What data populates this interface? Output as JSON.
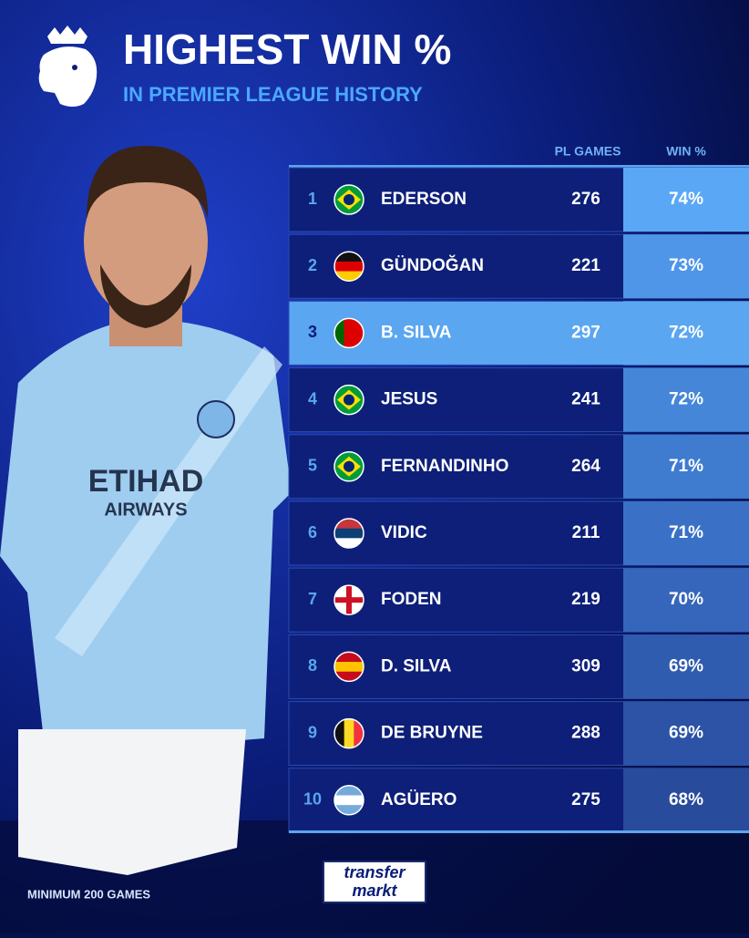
{
  "header": {
    "title": "HIGHEST WIN %",
    "subtitle": "IN PREMIER LEAGUE HISTORY"
  },
  "table": {
    "columns": [
      "PL GAMES",
      "WIN %"
    ],
    "rows": [
      [
        1,
        "EDERSON",
        276,
        "74%"
      ],
      [
        2,
        "GÜNDOĞAN",
        221,
        "73%"
      ],
      [
        3,
        "B. SILVA",
        297,
        "72%"
      ],
      [
        4,
        "JESUS",
        241,
        "72%"
      ],
      [
        5,
        "FERNANDINHO",
        264,
        "71%"
      ],
      [
        6,
        "VIDIC",
        211,
        "71%"
      ],
      [
        7,
        "FODEN",
        219,
        "70%"
      ],
      [
        8,
        "D. SILVA",
        309,
        "69%"
      ],
      [
        9,
        "DE BRUYNE",
        288,
        "69%"
      ],
      [
        10,
        "AGÜERO",
        275,
        "68%"
      ]
    ]
  },
  "footnote": "MINIMUM 200 GAMES",
  "logo": {
    "line1": "transfer",
    "line2": "markt"
  }
}
